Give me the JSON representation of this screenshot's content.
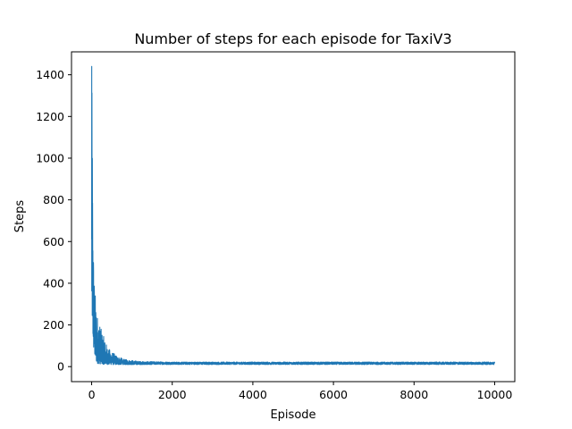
{
  "chart_data": {
    "type": "line",
    "title": "Number of steps for each episode for TaxiV3",
    "xlabel": "Episode",
    "ylabel": "Steps",
    "xlim": [
      -500,
      10500
    ],
    "ylim": [
      -72,
      1510
    ],
    "xticks": [
      0,
      2000,
      4000,
      6000,
      8000,
      10000
    ],
    "yticks": [
      0,
      200,
      400,
      600,
      800,
      1000,
      1200,
      1400
    ],
    "grid": false,
    "legend": "none",
    "series": [
      {
        "color": "#1f77b4",
        "x_range": [
          0,
          9999
        ],
        "peak_value": 1440,
        "peak_episode": 2,
        "envelope": [
          {
            "x": 0,
            "low": 250,
            "high": 960
          },
          {
            "x": 10,
            "low": 200,
            "high": 1440
          },
          {
            "x": 30,
            "low": 120,
            "high": 750
          },
          {
            "x": 60,
            "low": 60,
            "high": 450
          },
          {
            "x": 100,
            "low": 25,
            "high": 320
          },
          {
            "x": 150,
            "low": 15,
            "high": 240
          },
          {
            "x": 250,
            "low": 12,
            "high": 170
          },
          {
            "x": 400,
            "low": 10,
            "high": 90
          },
          {
            "x": 600,
            "low": 10,
            "high": 55
          },
          {
            "x": 800,
            "low": 10,
            "high": 35
          },
          {
            "x": 1200,
            "low": 10,
            "high": 25
          },
          {
            "x": 2000,
            "low": 10,
            "high": 22
          },
          {
            "x": 10000,
            "low": 10,
            "high": 22
          }
        ]
      }
    ]
  }
}
